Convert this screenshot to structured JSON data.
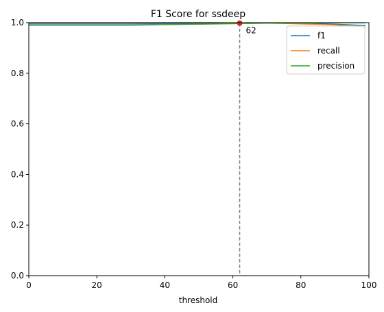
{
  "chart_data": {
    "type": "line",
    "title": "F1 Score for ssdeep",
    "xlabel": "threshold",
    "ylabel": "",
    "xlim": [
      0,
      100
    ],
    "ylim": [
      0,
      1.0
    ],
    "xticks": [
      0,
      20,
      40,
      60,
      80,
      100
    ],
    "yticks": [
      0.0,
      0.2,
      0.4,
      0.6,
      0.8,
      1.0
    ],
    "ytick_labels": [
      "0.0",
      "0.2",
      "0.4",
      "0.6",
      "0.8",
      "1.0"
    ],
    "grid": false,
    "legend_position": "top-right",
    "series": [
      {
        "name": "f1",
        "color": "#1f77b4",
        "x": [
          0,
          10,
          20,
          30,
          40,
          50,
          55,
          60,
          62,
          65,
          70,
          75,
          80,
          85,
          90,
          95,
          99
        ],
        "y": [
          0.995,
          0.995,
          0.995,
          0.995,
          0.996,
          0.997,
          0.997,
          0.998,
          0.998,
          0.998,
          0.998,
          0.998,
          0.997,
          0.996,
          0.994,
          0.991,
          0.988
        ]
      },
      {
        "name": "recall",
        "color": "#ff7f0e",
        "x": [
          0,
          10,
          20,
          30,
          40,
          50,
          55,
          60,
          62,
          65,
          70,
          75,
          80,
          85,
          90,
          95,
          99
        ],
        "y": [
          1.0,
          1.0,
          1.0,
          1.0,
          1.0,
          1.0,
          1.0,
          0.999,
          0.999,
          0.999,
          0.998,
          0.997,
          0.995,
          0.993,
          0.991,
          0.987,
          0.982
        ]
      },
      {
        "name": "precision",
        "color": "#2ca02c",
        "x": [
          0,
          10,
          20,
          30,
          40,
          50,
          55,
          60,
          62,
          65,
          70,
          75,
          80,
          85,
          90,
          95,
          99
        ],
        "y": [
          0.99,
          0.99,
          0.99,
          0.99,
          0.992,
          0.994,
          0.995,
          0.996,
          0.997,
          0.997,
          0.998,
          0.998,
          0.998,
          0.999,
          0.999,
          0.999,
          0.999
        ]
      }
    ],
    "marker": {
      "x": 62,
      "y": 0.998,
      "label": "62",
      "color": "#d62728",
      "line_color": "#808080"
    }
  }
}
